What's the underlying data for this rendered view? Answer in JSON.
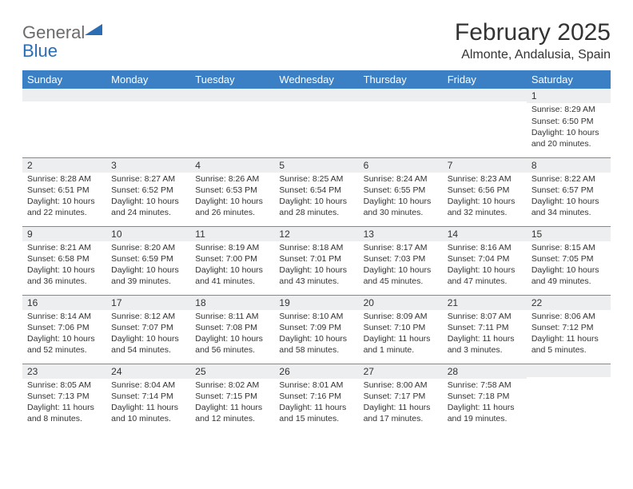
{
  "logo": {
    "word1": "General",
    "word2": "Blue"
  },
  "title": "February 2025",
  "location": "Almonte, Andalusia, Spain",
  "colors": {
    "header_bg": "#3b7fc4",
    "header_text": "#ffffff",
    "daynum_bg": "#eceeef",
    "border": "#888888",
    "logo_gray": "#6b6b6b",
    "logo_blue": "#2a6db5"
  },
  "weekdays": [
    "Sunday",
    "Monday",
    "Tuesday",
    "Wednesday",
    "Thursday",
    "Friday",
    "Saturday"
  ],
  "weeks": [
    [
      {
        "day": "",
        "lines": []
      },
      {
        "day": "",
        "lines": []
      },
      {
        "day": "",
        "lines": []
      },
      {
        "day": "",
        "lines": []
      },
      {
        "day": "",
        "lines": []
      },
      {
        "day": "",
        "lines": []
      },
      {
        "day": "1",
        "lines": [
          "Sunrise: 8:29 AM",
          "Sunset: 6:50 PM",
          "Daylight: 10 hours and 20 minutes."
        ]
      }
    ],
    [
      {
        "day": "2",
        "lines": [
          "Sunrise: 8:28 AM",
          "Sunset: 6:51 PM",
          "Daylight: 10 hours and 22 minutes."
        ]
      },
      {
        "day": "3",
        "lines": [
          "Sunrise: 8:27 AM",
          "Sunset: 6:52 PM",
          "Daylight: 10 hours and 24 minutes."
        ]
      },
      {
        "day": "4",
        "lines": [
          "Sunrise: 8:26 AM",
          "Sunset: 6:53 PM",
          "Daylight: 10 hours and 26 minutes."
        ]
      },
      {
        "day": "5",
        "lines": [
          "Sunrise: 8:25 AM",
          "Sunset: 6:54 PM",
          "Daylight: 10 hours and 28 minutes."
        ]
      },
      {
        "day": "6",
        "lines": [
          "Sunrise: 8:24 AM",
          "Sunset: 6:55 PM",
          "Daylight: 10 hours and 30 minutes."
        ]
      },
      {
        "day": "7",
        "lines": [
          "Sunrise: 8:23 AM",
          "Sunset: 6:56 PM",
          "Daylight: 10 hours and 32 minutes."
        ]
      },
      {
        "day": "8",
        "lines": [
          "Sunrise: 8:22 AM",
          "Sunset: 6:57 PM",
          "Daylight: 10 hours and 34 minutes."
        ]
      }
    ],
    [
      {
        "day": "9",
        "lines": [
          "Sunrise: 8:21 AM",
          "Sunset: 6:58 PM",
          "Daylight: 10 hours and 36 minutes."
        ]
      },
      {
        "day": "10",
        "lines": [
          "Sunrise: 8:20 AM",
          "Sunset: 6:59 PM",
          "Daylight: 10 hours and 39 minutes."
        ]
      },
      {
        "day": "11",
        "lines": [
          "Sunrise: 8:19 AM",
          "Sunset: 7:00 PM",
          "Daylight: 10 hours and 41 minutes."
        ]
      },
      {
        "day": "12",
        "lines": [
          "Sunrise: 8:18 AM",
          "Sunset: 7:01 PM",
          "Daylight: 10 hours and 43 minutes."
        ]
      },
      {
        "day": "13",
        "lines": [
          "Sunrise: 8:17 AM",
          "Sunset: 7:03 PM",
          "Daylight: 10 hours and 45 minutes."
        ]
      },
      {
        "day": "14",
        "lines": [
          "Sunrise: 8:16 AM",
          "Sunset: 7:04 PM",
          "Daylight: 10 hours and 47 minutes."
        ]
      },
      {
        "day": "15",
        "lines": [
          "Sunrise: 8:15 AM",
          "Sunset: 7:05 PM",
          "Daylight: 10 hours and 49 minutes."
        ]
      }
    ],
    [
      {
        "day": "16",
        "lines": [
          "Sunrise: 8:14 AM",
          "Sunset: 7:06 PM",
          "Daylight: 10 hours and 52 minutes."
        ]
      },
      {
        "day": "17",
        "lines": [
          "Sunrise: 8:12 AM",
          "Sunset: 7:07 PM",
          "Daylight: 10 hours and 54 minutes."
        ]
      },
      {
        "day": "18",
        "lines": [
          "Sunrise: 8:11 AM",
          "Sunset: 7:08 PM",
          "Daylight: 10 hours and 56 minutes."
        ]
      },
      {
        "day": "19",
        "lines": [
          "Sunrise: 8:10 AM",
          "Sunset: 7:09 PM",
          "Daylight: 10 hours and 58 minutes."
        ]
      },
      {
        "day": "20",
        "lines": [
          "Sunrise: 8:09 AM",
          "Sunset: 7:10 PM",
          "Daylight: 11 hours and 1 minute."
        ]
      },
      {
        "day": "21",
        "lines": [
          "Sunrise: 8:07 AM",
          "Sunset: 7:11 PM",
          "Daylight: 11 hours and 3 minutes."
        ]
      },
      {
        "day": "22",
        "lines": [
          "Sunrise: 8:06 AM",
          "Sunset: 7:12 PM",
          "Daylight: 11 hours and 5 minutes."
        ]
      }
    ],
    [
      {
        "day": "23",
        "lines": [
          "Sunrise: 8:05 AM",
          "Sunset: 7:13 PM",
          "Daylight: 11 hours and 8 minutes."
        ]
      },
      {
        "day": "24",
        "lines": [
          "Sunrise: 8:04 AM",
          "Sunset: 7:14 PM",
          "Daylight: 11 hours and 10 minutes."
        ]
      },
      {
        "day": "25",
        "lines": [
          "Sunrise: 8:02 AM",
          "Sunset: 7:15 PM",
          "Daylight: 11 hours and 12 minutes."
        ]
      },
      {
        "day": "26",
        "lines": [
          "Sunrise: 8:01 AM",
          "Sunset: 7:16 PM",
          "Daylight: 11 hours and 15 minutes."
        ]
      },
      {
        "day": "27",
        "lines": [
          "Sunrise: 8:00 AM",
          "Sunset: 7:17 PM",
          "Daylight: 11 hours and 17 minutes."
        ]
      },
      {
        "day": "28",
        "lines": [
          "Sunrise: 7:58 AM",
          "Sunset: 7:18 PM",
          "Daylight: 11 hours and 19 minutes."
        ]
      },
      {
        "day": "",
        "lines": []
      }
    ]
  ]
}
